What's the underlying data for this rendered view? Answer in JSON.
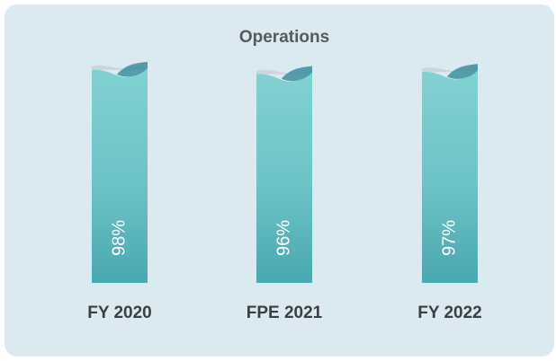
{
  "chart_data": {
    "type": "bar",
    "title": "Operations",
    "categories": [
      "FY 2020",
      "FPE 2021",
      "FY 2022"
    ],
    "values": [
      98,
      96,
      97
    ],
    "value_labels": [
      "98%",
      "96%",
      "97%"
    ],
    "color": "#5dbcc0"
  }
}
